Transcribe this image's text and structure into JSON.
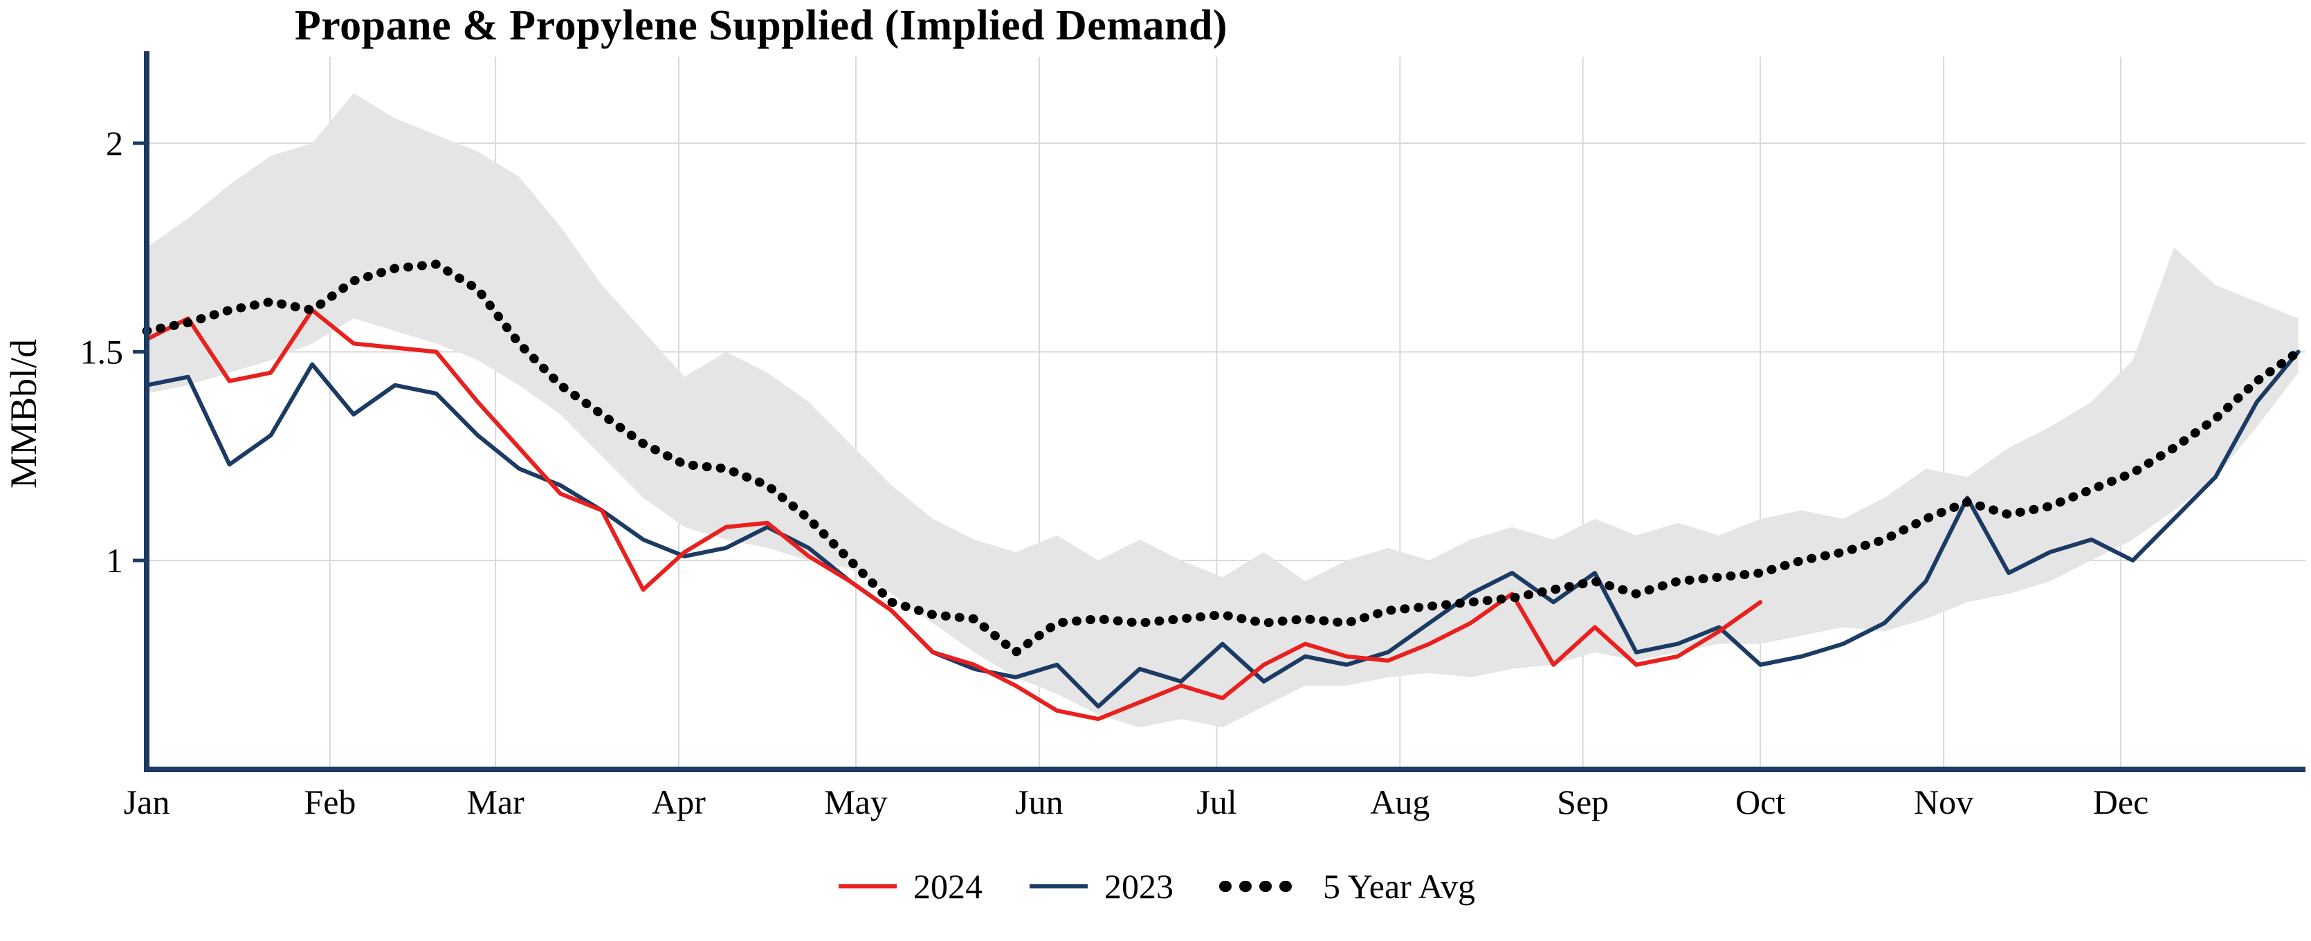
{
  "chart_data": {
    "type": "line",
    "title": "Propane & Propylene Supplied (Implied Demand)",
    "ylabel": "MMBbl/d",
    "axis_color": "#1b3a64",
    "grid_color": "#d9d9d9",
    "x_axis": {
      "labels": [
        "Jan",
        "Feb",
        "Mar",
        "Apr",
        "May",
        "Jun",
        "Jul",
        "Aug",
        "Sep",
        "Oct",
        "Nov",
        "Dec"
      ],
      "tick_weeks": [
        0,
        4.43,
        8.43,
        12.86,
        17.14,
        21.57,
        25.86,
        30.29,
        34.71,
        39.0,
        43.43,
        47.71
      ],
      "unit": "week of year"
    },
    "y_axis": {
      "ticks": [
        2,
        1.5,
        1
      ],
      "range": [
        0.5,
        2.2
      ],
      "grid": true
    },
    "legend_position": "bottom",
    "band": {
      "fill": "#e5e5e5",
      "upper": [
        1.75,
        1.82,
        1.9,
        1.97,
        2.0,
        2.12,
        2.06,
        2.02,
        1.98,
        1.92,
        1.8,
        1.66,
        1.55,
        1.44,
        1.5,
        1.45,
        1.38,
        1.28,
        1.18,
        1.1,
        1.05,
        1.02,
        1.06,
        1.0,
        1.05,
        1.0,
        0.96,
        1.02,
        0.95,
        1.0,
        1.03,
        1.0,
        1.05,
        1.08,
        1.05,
        1.1,
        1.06,
        1.09,
        1.06,
        1.1,
        1.12,
        1.1,
        1.15,
        1.22,
        1.2,
        1.27,
        1.32,
        1.38,
        1.48,
        1.75,
        1.66,
        1.62,
        1.58
      ],
      "lower": [
        1.4,
        1.42,
        1.45,
        1.48,
        1.52,
        1.58,
        1.55,
        1.52,
        1.48,
        1.42,
        1.35,
        1.25,
        1.15,
        1.08,
        1.05,
        1.03,
        1.0,
        0.98,
        0.92,
        0.85,
        0.78,
        0.72,
        0.68,
        0.63,
        0.6,
        0.62,
        0.6,
        0.65,
        0.7,
        0.7,
        0.72,
        0.73,
        0.72,
        0.74,
        0.75,
        0.78,
        0.76,
        0.78,
        0.8,
        0.8,
        0.82,
        0.84,
        0.83,
        0.86,
        0.9,
        0.92,
        0.95,
        1.0,
        1.05,
        1.12,
        1.2,
        1.32,
        1.45
      ]
    },
    "series": [
      {
        "name": "2024",
        "color": "#e8201e",
        "style": "solid",
        "weekly_values": [
          1.53,
          1.58,
          1.43,
          1.45,
          1.6,
          1.52,
          1.51,
          1.5,
          1.38,
          1.27,
          1.16,
          1.12,
          0.93,
          1.02,
          1.08,
          1.09,
          1.01,
          0.95,
          0.88,
          0.78,
          0.75,
          0.7,
          0.64,
          0.62,
          0.66,
          0.7,
          0.67,
          0.75,
          0.8,
          0.77,
          0.76,
          0.8,
          0.85,
          0.92,
          0.75,
          0.84,
          0.75,
          0.77,
          0.83,
          0.9
        ]
      },
      {
        "name": "2023",
        "color": "#1b3a64",
        "style": "solid",
        "weekly_values": [
          1.42,
          1.44,
          1.23,
          1.3,
          1.47,
          1.35,
          1.42,
          1.4,
          1.3,
          1.22,
          1.18,
          1.12,
          1.05,
          1.01,
          1.03,
          1.08,
          1.03,
          0.95,
          0.88,
          0.78,
          0.74,
          0.72,
          0.75,
          0.65,
          0.74,
          0.71,
          0.8,
          0.71,
          0.77,
          0.75,
          0.78,
          0.85,
          0.92,
          0.97,
          0.9,
          0.97,
          0.78,
          0.8,
          0.84,
          0.75,
          0.77,
          0.8,
          0.85,
          0.95,
          1.15,
          0.97,
          1.02,
          1.05,
          1.0,
          1.1,
          1.2,
          1.38,
          1.5
        ]
      },
      {
        "name": "5 Year Avg",
        "color": "#000000",
        "style": "dotted",
        "weekly_values": [
          1.55,
          1.57,
          1.6,
          1.62,
          1.6,
          1.67,
          1.7,
          1.71,
          1.65,
          1.52,
          1.42,
          1.35,
          1.28,
          1.23,
          1.22,
          1.18,
          1.1,
          1.0,
          0.9,
          0.87,
          0.86,
          0.78,
          0.85,
          0.86,
          0.85,
          0.86,
          0.87,
          0.85,
          0.86,
          0.85,
          0.88,
          0.89,
          0.9,
          0.91,
          0.93,
          0.95,
          0.92,
          0.95,
          0.96,
          0.97,
          1.0,
          1.02,
          1.05,
          1.1,
          1.14,
          1.11,
          1.13,
          1.17,
          1.21,
          1.27,
          1.34,
          1.43,
          1.5
        ]
      }
    ]
  }
}
